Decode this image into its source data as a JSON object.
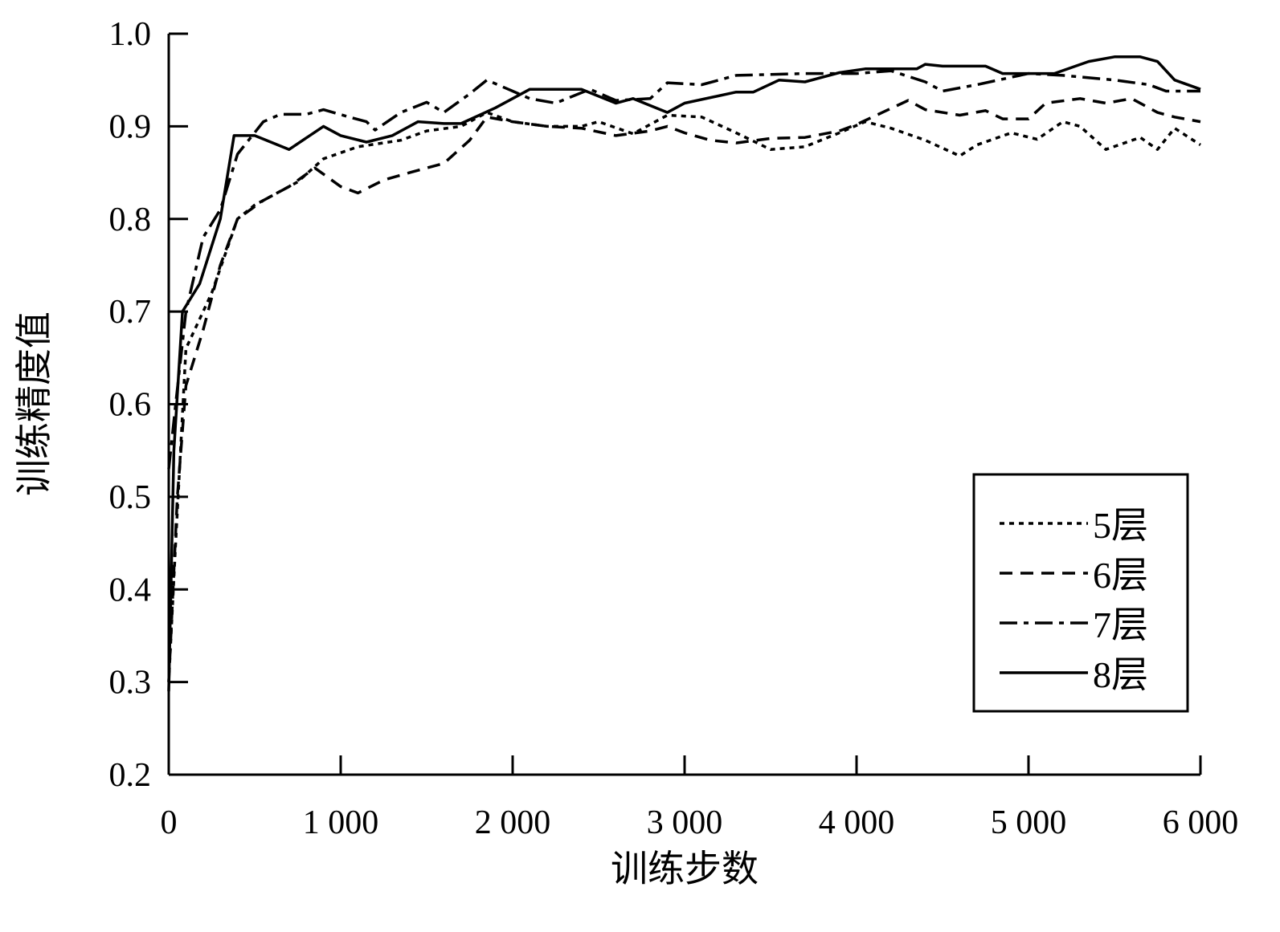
{
  "chart_data": {
    "type": "line",
    "title": "",
    "xlabel": "训练步数",
    "ylabel": "训练精度值",
    "xlim": [
      0,
      6000
    ],
    "ylim": [
      0.2,
      1.0
    ],
    "xticks": [
      0,
      1000,
      2000,
      3000,
      4000,
      5000,
      6000
    ],
    "xtick_labels": [
      "0",
      "1 000",
      "2 000",
      "3 000",
      "4 000",
      "5 000",
      "6 000"
    ],
    "yticks": [
      0.2,
      0.3,
      0.4,
      0.5,
      0.6,
      0.7,
      0.8,
      0.9,
      1.0
    ],
    "ytick_labels": [
      "0.2",
      "0.3",
      "0.4",
      "0.5",
      "0.6",
      "0.7",
      "0.8",
      "0.9",
      "1.0"
    ],
    "grid": false,
    "legend_position": "bottom-right",
    "series": [
      {
        "name": "5层",
        "style": "dotted",
        "color": "#000000",
        "x": [
          0,
          40,
          100,
          250,
          400,
          500,
          650,
          750,
          900,
          1100,
          1350,
          1500,
          1700,
          1850,
          2000,
          2200,
          2400,
          2500,
          2700,
          2900,
          3100,
          3300,
          3500,
          3700,
          3900,
          4050,
          4200,
          4400,
          4600,
          4700,
          4900,
          5050,
          5200,
          5300,
          5450,
          5650,
          5750,
          5850,
          6000
        ],
        "y": [
          0.3,
          0.45,
          0.66,
          0.72,
          0.8,
          0.815,
          0.83,
          0.84,
          0.865,
          0.878,
          0.885,
          0.895,
          0.9,
          0.915,
          0.905,
          0.9,
          0.9,
          0.905,
          0.892,
          0.912,
          0.91,
          0.893,
          0.875,
          0.878,
          0.893,
          0.905,
          0.898,
          0.885,
          0.868,
          0.88,
          0.893,
          0.886,
          0.905,
          0.9,
          0.875,
          0.888,
          0.875,
          0.898,
          0.88
        ]
      },
      {
        "name": "6层",
        "style": "dashed",
        "color": "#000000",
        "x": [
          0,
          50,
          100,
          200,
          300,
          400,
          550,
          700,
          850,
          1000,
          1100,
          1250,
          1400,
          1600,
          1750,
          1850,
          2000,
          2200,
          2400,
          2600,
          2800,
          2900,
          3000,
          3150,
          3300,
          3500,
          3700,
          3900,
          4000,
          4150,
          4300,
          4400,
          4600,
          4750,
          4850,
          5000,
          5100,
          5300,
          5450,
          5600,
          5750,
          5850,
          6000
        ],
        "y": [
          0.3,
          0.5,
          0.62,
          0.68,
          0.75,
          0.8,
          0.82,
          0.835,
          0.855,
          0.835,
          0.828,
          0.842,
          0.85,
          0.86,
          0.885,
          0.91,
          0.905,
          0.9,
          0.898,
          0.89,
          0.895,
          0.9,
          0.893,
          0.885,
          0.882,
          0.887,
          0.888,
          0.895,
          0.902,
          0.915,
          0.928,
          0.918,
          0.912,
          0.917,
          0.908,
          0.908,
          0.925,
          0.93,
          0.925,
          0.93,
          0.915,
          0.91,
          0.905
        ]
      },
      {
        "name": "7层",
        "style": "dashdot",
        "color": "#000000",
        "x": [
          0,
          40,
          100,
          200,
          300,
          400,
          550,
          650,
          800,
          900,
          1050,
          1150,
          1200,
          1350,
          1500,
          1600,
          1750,
          1850,
          2000,
          2100,
          2250,
          2450,
          2600,
          2800,
          2900,
          3100,
          3300,
          3700,
          4000,
          4200,
          4400,
          4500,
          4700,
          5000,
          5200,
          5500,
          5700,
          5800,
          6000
        ],
        "y": [
          0.53,
          0.6,
          0.7,
          0.78,
          0.81,
          0.87,
          0.905,
          0.913,
          0.913,
          0.918,
          0.91,
          0.905,
          0.896,
          0.915,
          0.926,
          0.915,
          0.935,
          0.95,
          0.938,
          0.93,
          0.925,
          0.94,
          0.928,
          0.93,
          0.947,
          0.945,
          0.955,
          0.957,
          0.957,
          0.96,
          0.948,
          0.938,
          0.945,
          0.957,
          0.955,
          0.95,
          0.945,
          0.938,
          0.938
        ]
      },
      {
        "name": "8层",
        "style": "solid",
        "color": "#000000",
        "x": [
          0,
          30,
          80,
          180,
          300,
          380,
          500,
          700,
          900,
          1000,
          1150,
          1300,
          1450,
          1600,
          1700,
          1900,
          2100,
          2200,
          2400,
          2600,
          2700,
          2900,
          3000,
          3300,
          3400,
          3550,
          3700,
          3900,
          4050,
          4350,
          4400,
          4500,
          4750,
          4850,
          5150,
          5350,
          5500,
          5650,
          5750,
          5850,
          6000
        ],
        "y": [
          0.29,
          0.55,
          0.7,
          0.73,
          0.8,
          0.89,
          0.89,
          0.875,
          0.9,
          0.89,
          0.883,
          0.89,
          0.905,
          0.903,
          0.903,
          0.92,
          0.94,
          0.94,
          0.94,
          0.925,
          0.93,
          0.915,
          0.925,
          0.937,
          0.937,
          0.95,
          0.948,
          0.958,
          0.962,
          0.962,
          0.967,
          0.965,
          0.965,
          0.957,
          0.957,
          0.97,
          0.975,
          0.975,
          0.97,
          0.95,
          0.94
        ]
      }
    ]
  }
}
